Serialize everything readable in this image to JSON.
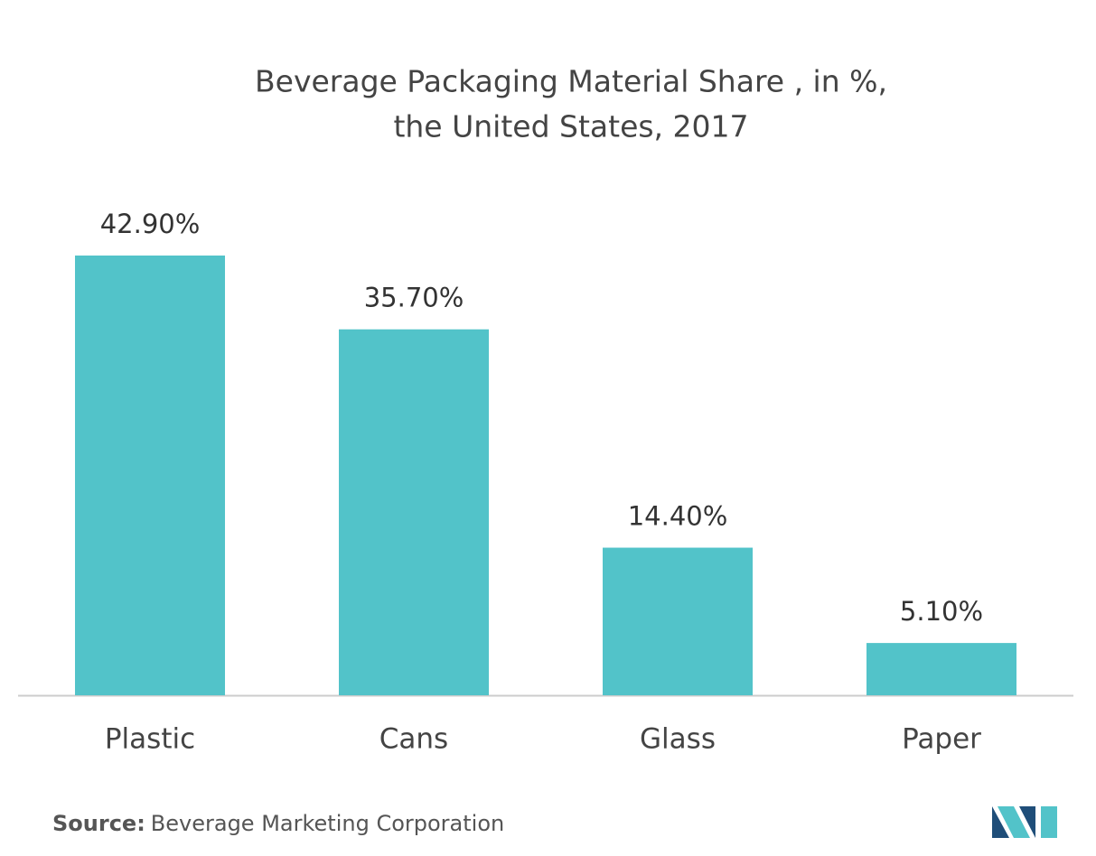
{
  "chart_data": {
    "type": "bar",
    "title": [
      "Beverage Packaging Material Share , in %,",
      "the United States, 2017"
    ],
    "categories": [
      "Plastic",
      "Cans",
      "Glass",
      "Paper"
    ],
    "values": [
      42.9,
      35.7,
      14.4,
      5.1
    ],
    "value_labels": [
      "42.90%",
      "35.70%",
      "14.40%",
      "5.10%"
    ],
    "color": "#52c3c9",
    "source": {
      "label": "Source:",
      "text": "Beverage Marketing Corporation"
    }
  }
}
